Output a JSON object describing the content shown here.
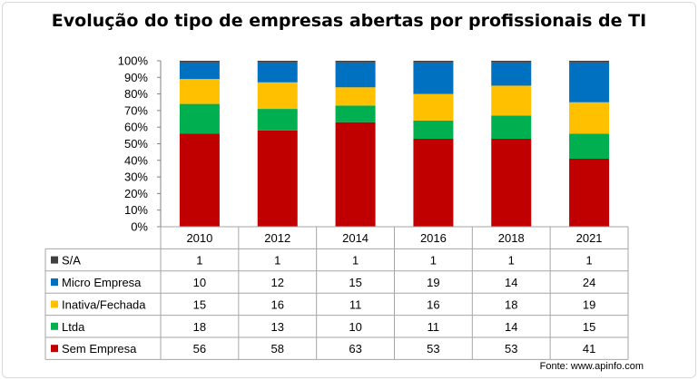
{
  "title": "Evolução do tipo de empresas abertas por profissionais de TI",
  "source": "Fonte:  www.apinfo.com",
  "chart_data": {
    "type": "bar",
    "stacked": "percent",
    "categories": [
      "2010",
      "2012",
      "2014",
      "2016",
      "2018",
      "2021"
    ],
    "y_ticks": [
      "0%",
      "10%",
      "20%",
      "30%",
      "40%",
      "50%",
      "60%",
      "70%",
      "80%",
      "90%",
      "100%"
    ],
    "ylim": [
      0,
      100
    ],
    "grid": false,
    "series": [
      {
        "name": "S/A",
        "color": "#404040",
        "values": [
          1,
          1,
          1,
          1,
          1,
          1
        ]
      },
      {
        "name": "Micro Empresa",
        "color": "#0070c0",
        "values": [
          10,
          12,
          15,
          19,
          14,
          24
        ]
      },
      {
        "name": "Inativa/Fechada",
        "color": "#ffc000",
        "values": [
          15,
          16,
          11,
          16,
          18,
          19
        ]
      },
      {
        "name": "Ltda",
        "color": "#00b050",
        "values": [
          18,
          13,
          10,
          11,
          14,
          15
        ]
      },
      {
        "name": "Sem Empresa",
        "color": "#c00000",
        "values": [
          56,
          58,
          63,
          53,
          53,
          41
        ]
      }
    ],
    "stack_order_bottom_to_top": [
      "Sem Empresa",
      "Ltda",
      "Inativa/Fechada",
      "Micro Empresa",
      "S/A"
    ]
  }
}
